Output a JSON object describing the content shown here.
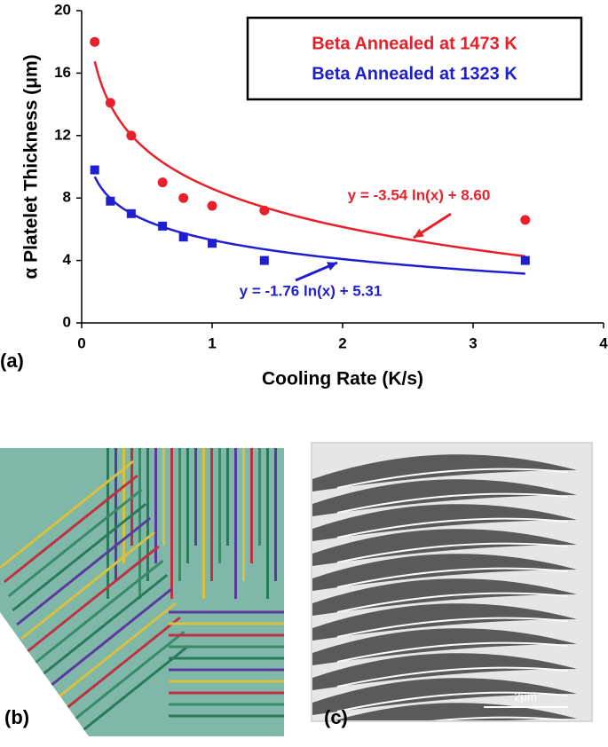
{
  "chart_data": {
    "type": "scatter",
    "x_label": "Cooling Rate (K/s)",
    "y_label": "α Platelet Thickness (μm)",
    "xlim": [
      0,
      4
    ],
    "xticks": [
      0,
      1,
      2,
      3,
      4
    ],
    "ylim": [
      0,
      20
    ],
    "yticks": [
      0,
      4,
      8,
      12,
      16,
      20
    ],
    "legend": "upper right",
    "series": [
      {
        "name": "Beta Annealed at 1473 K",
        "color": "#e8202a",
        "marker": "circle",
        "x": [
          0.1,
          0.22,
          0.38,
          0.62,
          0.78,
          1.0,
          1.4,
          3.4
        ],
        "values": [
          18.0,
          14.1,
          12.0,
          9.0,
          8.0,
          7.5,
          7.2,
          6.6
        ],
        "fit_equation": "y = -3.54 ln(x) + 8.60",
        "fit_slope": -3.54,
        "fit_intercept": 8.6
      },
      {
        "name": "Beta Annealed at 1323 K",
        "color": "#1f1fd0",
        "marker": "square",
        "x": [
          0.1,
          0.22,
          0.38,
          0.62,
          0.78,
          1.0,
          1.4,
          3.4
        ],
        "values": [
          9.8,
          7.8,
          7.0,
          6.2,
          5.5,
          5.1,
          4.0,
          4.0
        ],
        "fit_equation": "y = -1.76 ln(x) + 5.31",
        "fit_slope": -1.76,
        "fit_intercept": 5.31
      }
    ]
  },
  "panels": {
    "a": "(a)",
    "b": "(b)",
    "c": "(c)",
    "scale_bar": "2μm"
  }
}
